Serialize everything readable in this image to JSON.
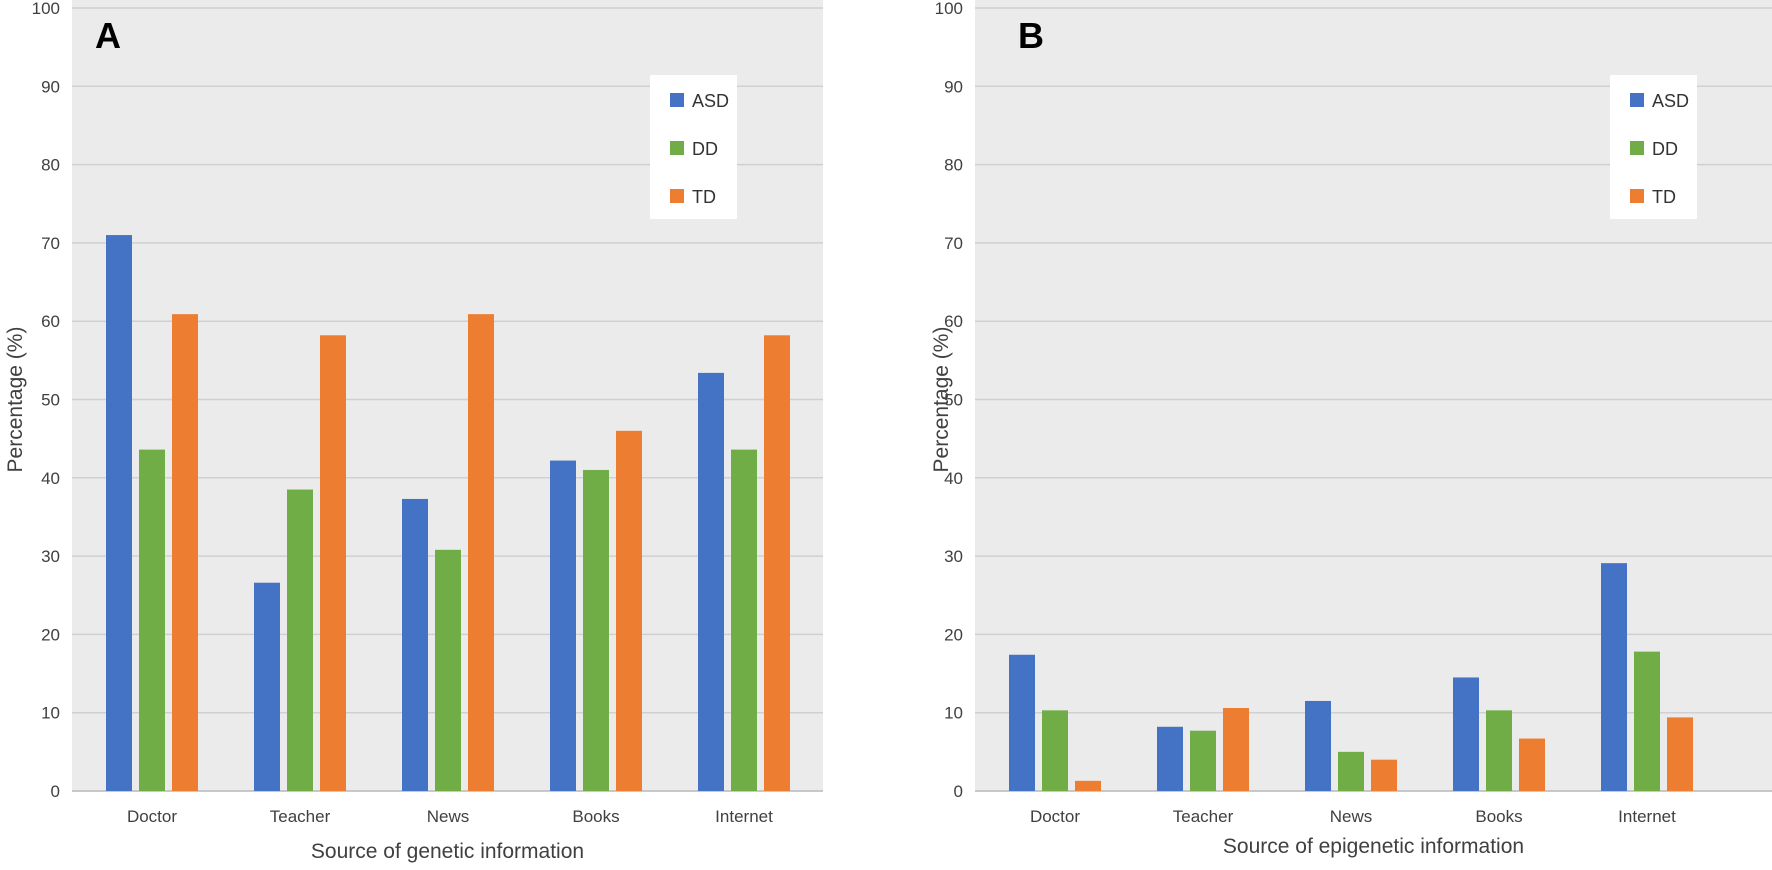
{
  "chart_data": [
    {
      "type": "bar",
      "panel_label": "A",
      "title": "",
      "categories": [
        "Doctor",
        "Teacher",
        "News",
        "Books",
        "Internet"
      ],
      "series": [
        {
          "name": "ASD",
          "color": "#4472C4",
          "values": [
            71,
            26.6,
            37.3,
            42.2,
            53.4
          ]
        },
        {
          "name": "DD",
          "color": "#70AD47",
          "values": [
            43.6,
            38.5,
            30.8,
            41,
            43.6
          ]
        },
        {
          "name": "TD",
          "color": "#ED7D31",
          "values": [
            60.9,
            58.2,
            60.9,
            46,
            58.2
          ]
        }
      ],
      "xlabel": "Source of genetic information",
      "ylabel": "Percentage (%)",
      "ylim": [
        0,
        100
      ],
      "yticks": [
        0,
        10,
        20,
        30,
        40,
        50,
        60,
        70,
        80,
        90,
        100
      ],
      "grid": true,
      "legend": "top-right"
    },
    {
      "type": "bar",
      "panel_label": "B",
      "title": "",
      "categories": [
        "Doctor",
        "Teacher",
        "News",
        "Books",
        "Internet"
      ],
      "series": [
        {
          "name": "ASD",
          "color": "#4472C4",
          "values": [
            17.4,
            8.2,
            11.5,
            14.5,
            29.1
          ]
        },
        {
          "name": "DD",
          "color": "#70AD47",
          "values": [
            10.3,
            7.7,
            5,
            10.3,
            17.8
          ]
        },
        {
          "name": "TD",
          "color": "#ED7D31",
          "values": [
            1.3,
            10.6,
            4,
            6.7,
            9.4
          ]
        }
      ],
      "xlabel": "Source of epigenetic information",
      "ylabel": "Percentage (%)",
      "ylim": [
        0,
        100
      ],
      "yticks": [
        0,
        10,
        20,
        30,
        40,
        50,
        60,
        70,
        80,
        90,
        100
      ],
      "grid": true,
      "legend": "top-right"
    }
  ]
}
